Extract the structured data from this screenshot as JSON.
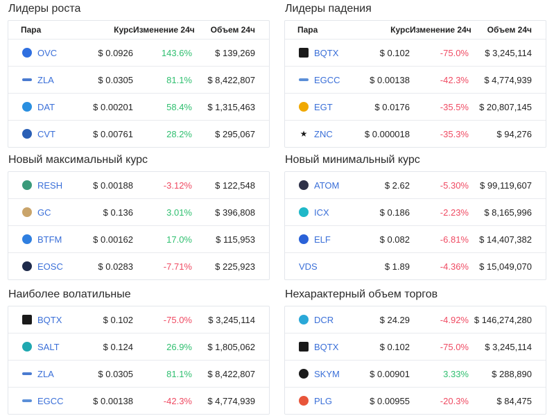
{
  "panels": [
    {
      "id": "growth-leaders",
      "title": "Лидеры роста",
      "headers": {
        "pair": "Пара",
        "price": "Курс",
        "change": "Изменение 24ч",
        "volume": "Объем 24ч"
      },
      "rows": [
        {
          "icon": "ovc-icon",
          "icon_color": "#2f6fe0",
          "symbol": "OVC",
          "price": "$ 0.0926",
          "change": "143.6%",
          "dir": "pos",
          "volume": "$ 139,269"
        },
        {
          "icon": "zla-icon",
          "icon_color": "#4a7bd0",
          "symbol": "ZLA",
          "price": "$ 0.0305",
          "change": "81.1%",
          "dir": "pos",
          "volume": "$ 8,422,807"
        },
        {
          "icon": "dat-icon",
          "icon_color": "#2a8fe0",
          "symbol": "DAT",
          "price": "$ 0.00201",
          "change": "58.4%",
          "dir": "pos",
          "volume": "$ 1,315,463"
        },
        {
          "icon": "cvt-icon",
          "icon_color": "#2a5fb5",
          "symbol": "CVT",
          "price": "$ 0.00761",
          "change": "28.2%",
          "dir": "pos",
          "volume": "$ 295,067"
        }
      ]
    },
    {
      "id": "decline-leaders",
      "title": "Лидеры падения",
      "headers": {
        "pair": "Пара",
        "price": "Курс",
        "change": "Изменение 24ч",
        "volume": "Объем 24ч"
      },
      "rows": [
        {
          "icon": "bqtx-icon",
          "icon_color": "#1a1a1a",
          "symbol": "BQTX",
          "price": "$ 0.102",
          "change": "-75.0%",
          "dir": "neg",
          "volume": "$ 3,245,114"
        },
        {
          "icon": "egcc-icon",
          "icon_color": "#5b8fd8",
          "symbol": "EGCC",
          "price": "$ 0.00138",
          "change": "-42.3%",
          "dir": "neg",
          "volume": "$ 4,774,939"
        },
        {
          "icon": "egt-icon",
          "icon_color": "#f0a800",
          "symbol": "EGT",
          "price": "$ 0.0176",
          "change": "-35.5%",
          "dir": "neg",
          "volume": "$ 20,807,145"
        },
        {
          "icon": "znc-icon",
          "icon_color": "#1a1a1a",
          "symbol": "ZNC",
          "price": "$ 0.000018",
          "change": "-35.3%",
          "dir": "neg",
          "volume": "$ 94,276"
        }
      ]
    },
    {
      "id": "new-max-rate",
      "title": "Новый максимальный курс",
      "headers": null,
      "rows": [
        {
          "icon": "resh-icon",
          "icon_color": "#3a9a7a",
          "symbol": "RESH",
          "price": "$ 0.00188",
          "change": "-3.12%",
          "dir": "neg",
          "volume": "$ 122,548"
        },
        {
          "icon": "gc-icon",
          "icon_color": "#c9a46a",
          "symbol": "GC",
          "price": "$ 0.136",
          "change": "3.01%",
          "dir": "pos",
          "volume": "$ 396,808"
        },
        {
          "icon": "btfm-icon",
          "icon_color": "#2f7fe0",
          "symbol": "BTFM",
          "price": "$ 0.00162",
          "change": "17.0%",
          "dir": "pos",
          "volume": "$ 115,953"
        },
        {
          "icon": "eosc-icon",
          "icon_color": "#1e2a4a",
          "symbol": "EOSC",
          "price": "$ 0.0283",
          "change": "-7.71%",
          "dir": "neg",
          "volume": "$ 225,923"
        }
      ]
    },
    {
      "id": "new-min-rate",
      "title": "Новый минимальный курс",
      "headers": null,
      "rows": [
        {
          "icon": "atom-icon",
          "icon_color": "#2e3148",
          "symbol": "ATOM",
          "price": "$ 2.62",
          "change": "-5.30%",
          "dir": "neg",
          "volume": "$ 99,119,607"
        },
        {
          "icon": "icx-icon",
          "icon_color": "#1fb8c8",
          "symbol": "ICX",
          "price": "$ 0.186",
          "change": "-2.23%",
          "dir": "neg",
          "volume": "$ 8,165,996"
        },
        {
          "icon": "elf-icon",
          "icon_color": "#2a62d8",
          "symbol": "ELF",
          "price": "$ 0.082",
          "change": "-6.81%",
          "dir": "neg",
          "volume": "$ 14,407,382"
        },
        {
          "icon": "",
          "icon_color": "",
          "symbol": "VDS",
          "price": "$ 1.89",
          "change": "-4.36%",
          "dir": "neg",
          "volume": "$ 15,049,070"
        }
      ]
    },
    {
      "id": "most-volatile",
      "title": "Наиболее волатильные",
      "headers": null,
      "rows": [
        {
          "icon": "bqtx-icon",
          "icon_color": "#1a1a1a",
          "symbol": "BQTX",
          "price": "$ 0.102",
          "change": "-75.0%",
          "dir": "neg",
          "volume": "$ 3,245,114"
        },
        {
          "icon": "salt-icon",
          "icon_color": "#1fa8b0",
          "symbol": "SALT",
          "price": "$ 0.124",
          "change": "26.9%",
          "dir": "pos",
          "volume": "$ 1,805,062"
        },
        {
          "icon": "zla-icon",
          "icon_color": "#4a7bd0",
          "symbol": "ZLA",
          "price": "$ 0.0305",
          "change": "81.1%",
          "dir": "pos",
          "volume": "$ 8,422,807"
        },
        {
          "icon": "egcc-icon",
          "icon_color": "#5b8fd8",
          "symbol": "EGCC",
          "price": "$ 0.00138",
          "change": "-42.3%",
          "dir": "neg",
          "volume": "$ 4,774,939"
        }
      ]
    },
    {
      "id": "unusual-volume",
      "title": "Нехарактерный объем торгов",
      "headers": null,
      "rows": [
        {
          "icon": "dcr-icon",
          "icon_color": "#2aa8d8",
          "symbol": "DCR",
          "price": "$ 24.29",
          "change": "-4.92%",
          "dir": "neg",
          "volume": "$ 146,274,280"
        },
        {
          "icon": "bqtx-icon",
          "icon_color": "#1a1a1a",
          "symbol": "BQTX",
          "price": "$ 0.102",
          "change": "-75.0%",
          "dir": "neg",
          "volume": "$ 3,245,114"
        },
        {
          "icon": "skym-icon",
          "icon_color": "#1a1a1a",
          "symbol": "SKYM",
          "price": "$ 0.00901",
          "change": "3.33%",
          "dir": "pos",
          "volume": "$ 288,890"
        },
        {
          "icon": "plg-icon",
          "icon_color": "#e8553a",
          "symbol": "PLG",
          "price": "$ 0.00955",
          "change": "-20.3%",
          "dir": "neg",
          "volume": "$ 84,475"
        }
      ]
    }
  ]
}
